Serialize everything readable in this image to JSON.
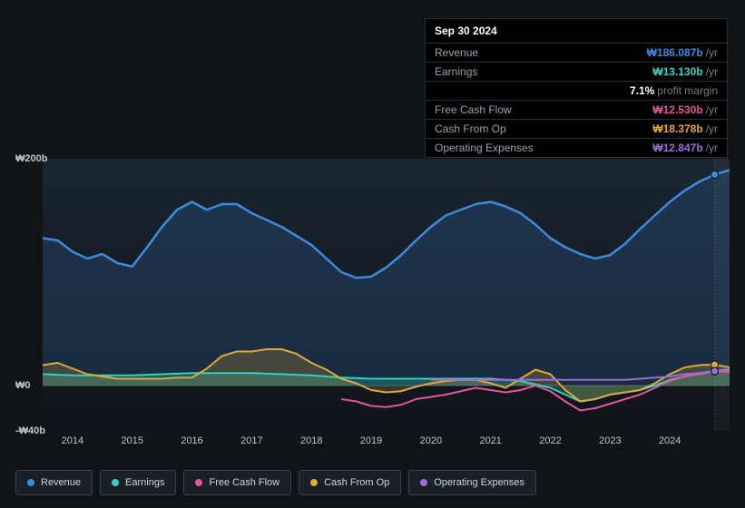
{
  "tooltip": {
    "date": "Sep 30 2024",
    "rows": [
      {
        "label": "Revenue",
        "value": "₩186.087b",
        "unit": "/yr",
        "color": "#3f8ae0"
      },
      {
        "label": "Earnings",
        "value": "₩13.130b",
        "unit": "/yr",
        "color": "#2dd4bf"
      },
      {
        "label": "",
        "value": "7.1%",
        "unit": "profit margin",
        "color": "#ffffff"
      },
      {
        "label": "Free Cash Flow",
        "value": "₩12.530b",
        "unit": "/yr",
        "color": "#e6559b"
      },
      {
        "label": "Cash From Op",
        "value": "₩18.378b",
        "unit": "/yr",
        "color": "#e0a838"
      },
      {
        "label": "Operating Expenses",
        "value": "₩12.847b",
        "unit": "/yr",
        "color": "#9a6dd7"
      }
    ]
  },
  "chart": {
    "type": "line",
    "background_color": "#0f1419",
    "plot_gradient_top": "#1a2530",
    "plot_gradient_bottom": "#0f1419",
    "ylim": [
      -40,
      200
    ],
    "yticks": [
      {
        "v": 200,
        "label": "₩200b"
      },
      {
        "v": 0,
        "label": "₩0"
      },
      {
        "v": -40,
        "label": "-₩40b"
      }
    ],
    "xlim": [
      2013.5,
      2025.0
    ],
    "xticks": [
      2014,
      2015,
      2016,
      2017,
      2018,
      2019,
      2020,
      2021,
      2022,
      2023,
      2024
    ],
    "marker_x": 2024.75,
    "series": [
      {
        "name": "Revenue",
        "color": "#3f8ae0",
        "width": 2.5,
        "fill_opacity": 0.18,
        "points": [
          [
            2013.5,
            130
          ],
          [
            2013.75,
            128
          ],
          [
            2014.0,
            118
          ],
          [
            2014.25,
            112
          ],
          [
            2014.5,
            116
          ],
          [
            2014.75,
            108
          ],
          [
            2015.0,
            105
          ],
          [
            2015.25,
            122
          ],
          [
            2015.5,
            140
          ],
          [
            2015.75,
            155
          ],
          [
            2016.0,
            162
          ],
          [
            2016.25,
            155
          ],
          [
            2016.5,
            160
          ],
          [
            2016.75,
            160
          ],
          [
            2017.0,
            152
          ],
          [
            2017.25,
            146
          ],
          [
            2017.5,
            140
          ],
          [
            2017.75,
            132
          ],
          [
            2018.0,
            124
          ],
          [
            2018.25,
            112
          ],
          [
            2018.5,
            100
          ],
          [
            2018.75,
            95
          ],
          [
            2019.0,
            96
          ],
          [
            2019.25,
            104
          ],
          [
            2019.5,
            115
          ],
          [
            2019.75,
            128
          ],
          [
            2020.0,
            140
          ],
          [
            2020.25,
            150
          ],
          [
            2020.5,
            155
          ],
          [
            2020.75,
            160
          ],
          [
            2021.0,
            162
          ],
          [
            2021.25,
            158
          ],
          [
            2021.5,
            152
          ],
          [
            2021.75,
            142
          ],
          [
            2022.0,
            130
          ],
          [
            2022.25,
            122
          ],
          [
            2022.5,
            116
          ],
          [
            2022.75,
            112
          ],
          [
            2023.0,
            115
          ],
          [
            2023.25,
            125
          ],
          [
            2023.5,
            138
          ],
          [
            2023.75,
            150
          ],
          [
            2024.0,
            162
          ],
          [
            2024.25,
            172
          ],
          [
            2024.5,
            180
          ],
          [
            2024.75,
            186
          ],
          [
            2025.0,
            190
          ]
        ]
      },
      {
        "name": "Earnings",
        "color": "#2dd4bf",
        "width": 2,
        "fill_opacity": 0.25,
        "points": [
          [
            2013.5,
            10
          ],
          [
            2014.0,
            9
          ],
          [
            2014.5,
            9
          ],
          [
            2015.0,
            9
          ],
          [
            2015.5,
            10
          ],
          [
            2016.0,
            11
          ],
          [
            2016.5,
            11
          ],
          [
            2017.0,
            11
          ],
          [
            2017.5,
            10
          ],
          [
            2018.0,
            9
          ],
          [
            2018.5,
            7
          ],
          [
            2019.0,
            6
          ],
          [
            2019.5,
            6
          ],
          [
            2020.0,
            6
          ],
          [
            2020.5,
            6
          ],
          [
            2021.0,
            6
          ],
          [
            2021.5,
            4
          ],
          [
            2022.0,
            -2
          ],
          [
            2022.25,
            -8
          ],
          [
            2022.5,
            -14
          ],
          [
            2022.75,
            -12
          ],
          [
            2023.0,
            -8
          ],
          [
            2023.25,
            -6
          ],
          [
            2023.5,
            -4
          ],
          [
            2023.75,
            0
          ],
          [
            2024.0,
            5
          ],
          [
            2024.25,
            8
          ],
          [
            2024.5,
            11
          ],
          [
            2024.75,
            13
          ],
          [
            2025.0,
            14
          ]
        ]
      },
      {
        "name": "Free Cash Flow",
        "color": "#e6559b",
        "width": 2,
        "fill_opacity": 0,
        "points": [
          [
            2018.5,
            -12
          ],
          [
            2018.75,
            -14
          ],
          [
            2019.0,
            -18
          ],
          [
            2019.25,
            -19
          ],
          [
            2019.5,
            -17
          ],
          [
            2019.75,
            -12
          ],
          [
            2020.0,
            -10
          ],
          [
            2020.25,
            -8
          ],
          [
            2020.5,
            -5
          ],
          [
            2020.75,
            -2
          ],
          [
            2021.0,
            -4
          ],
          [
            2021.25,
            -6
          ],
          [
            2021.5,
            -4
          ],
          [
            2021.75,
            0
          ],
          [
            2022.0,
            -5
          ],
          [
            2022.25,
            -14
          ],
          [
            2022.5,
            -22
          ],
          [
            2022.75,
            -20
          ],
          [
            2023.0,
            -16
          ],
          [
            2023.25,
            -12
          ],
          [
            2023.5,
            -8
          ],
          [
            2023.75,
            -2
          ],
          [
            2024.0,
            4
          ],
          [
            2024.25,
            8
          ],
          [
            2024.5,
            10
          ],
          [
            2024.75,
            12.5
          ],
          [
            2025.0,
            12
          ]
        ]
      },
      {
        "name": "Cash From Op",
        "color": "#e0a838",
        "width": 2,
        "fill_opacity": 0.22,
        "points": [
          [
            2013.5,
            18
          ],
          [
            2013.75,
            20
          ],
          [
            2014.0,
            15
          ],
          [
            2014.25,
            10
          ],
          [
            2014.5,
            8
          ],
          [
            2014.75,
            6
          ],
          [
            2015.0,
            6
          ],
          [
            2015.25,
            6
          ],
          [
            2015.5,
            6
          ],
          [
            2015.75,
            7
          ],
          [
            2016.0,
            7
          ],
          [
            2016.25,
            15
          ],
          [
            2016.5,
            26
          ],
          [
            2016.75,
            30
          ],
          [
            2017.0,
            30
          ],
          [
            2017.25,
            32
          ],
          [
            2017.5,
            32
          ],
          [
            2017.75,
            28
          ],
          [
            2018.0,
            20
          ],
          [
            2018.25,
            14
          ],
          [
            2018.5,
            6
          ],
          [
            2018.75,
            2
          ],
          [
            2019.0,
            -4
          ],
          [
            2019.25,
            -6
          ],
          [
            2019.5,
            -5
          ],
          [
            2019.75,
            -1
          ],
          [
            2020.0,
            2
          ],
          [
            2020.25,
            4
          ],
          [
            2020.5,
            5
          ],
          [
            2020.75,
            5
          ],
          [
            2021.0,
            2
          ],
          [
            2021.25,
            -2
          ],
          [
            2021.5,
            6
          ],
          [
            2021.75,
            14
          ],
          [
            2022.0,
            10
          ],
          [
            2022.25,
            -4
          ],
          [
            2022.5,
            -14
          ],
          [
            2022.75,
            -12
          ],
          [
            2023.0,
            -8
          ],
          [
            2023.25,
            -6
          ],
          [
            2023.5,
            -4
          ],
          [
            2023.75,
            2
          ],
          [
            2024.0,
            10
          ],
          [
            2024.25,
            16
          ],
          [
            2024.5,
            18
          ],
          [
            2024.75,
            18.4
          ],
          [
            2025.0,
            16
          ]
        ]
      },
      {
        "name": "Operating Expenses",
        "color": "#9a6dd7",
        "width": 2,
        "fill_opacity": 0,
        "points": [
          [
            2020.0,
            5
          ],
          [
            2020.5,
            5
          ],
          [
            2021.0,
            5
          ],
          [
            2021.5,
            5
          ],
          [
            2022.0,
            5
          ],
          [
            2022.5,
            5
          ],
          [
            2023.0,
            5
          ],
          [
            2023.25,
            5
          ],
          [
            2023.5,
            6
          ],
          [
            2023.75,
            7
          ],
          [
            2024.0,
            8
          ],
          [
            2024.25,
            10
          ],
          [
            2024.5,
            11
          ],
          [
            2024.75,
            12.8
          ],
          [
            2025.0,
            13
          ]
        ]
      }
    ],
    "legend_labels": {
      "revenue": "Revenue",
      "earnings": "Earnings",
      "fcf": "Free Cash Flow",
      "cfo": "Cash From Op",
      "opex": "Operating Expenses"
    }
  }
}
